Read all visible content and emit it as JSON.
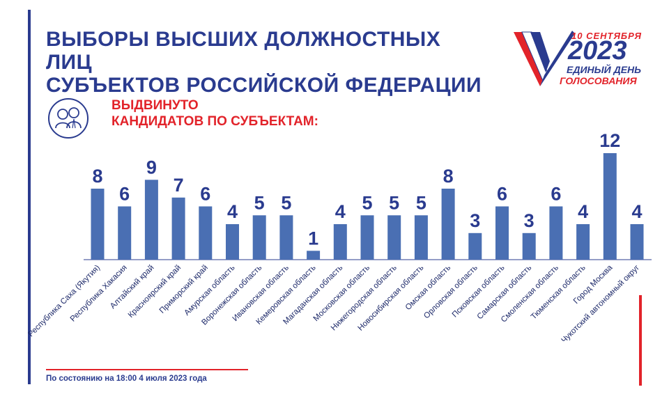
{
  "header": {
    "title_line1": "ВЫБОРЫ ВЫСШИХ ДОЛЖНОСТНЫХ ЛИЦ",
    "title_line2": "СУБЪЕКТОВ РОССИЙСКОЙ ФЕДЕРАЦИИ",
    "subtitle_line1": "ВЫДВИНУТО",
    "subtitle_line2": "КАНДИДАТОВ ПО СУБЪЕКТАМ:"
  },
  "logo": {
    "date": "10 СЕНТЯБРЯ",
    "year": "2023",
    "line1": "ЕДИНЫЙ ДЕНЬ",
    "line2": "ГОЛОСОВАНИЯ"
  },
  "footer": {
    "note": "По состоянию на 18:00  4 июля 2023 года"
  },
  "colors": {
    "brand_blue": "#2a3b8f",
    "bar_blue": "#4a6fb3",
    "accent_red": "#e2232a"
  },
  "chart_data": {
    "type": "bar",
    "title": "",
    "xlabel": "",
    "ylabel": "",
    "ylim": [
      0,
      12
    ],
    "grid": false,
    "categories": [
      "Республика Саха (Якутия)",
      "Республика Хакасия",
      "Алтайский край",
      "Красноярский край",
      "Приморский край",
      "Амурская область",
      "Воронежская область",
      "Ивановская область",
      "Кемеровская область",
      "Магаданская область",
      "Московская область",
      "Нижегородская область",
      "Новосибирская область",
      "Омская область",
      "Орловская область",
      "Псковская область",
      "Самарская область",
      "Смоленская область",
      "Тюменская область",
      "Город Москва",
      "Чукотский автономный округ"
    ],
    "values": [
      8,
      6,
      9,
      7,
      6,
      4,
      5,
      5,
      1,
      4,
      5,
      5,
      5,
      8,
      3,
      6,
      3,
      6,
      4,
      12,
      4
    ]
  }
}
